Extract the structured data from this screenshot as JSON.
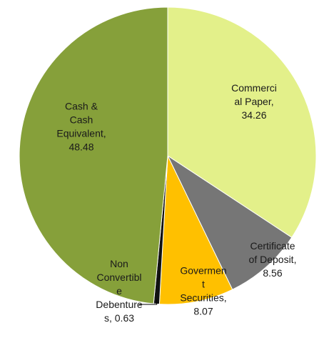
{
  "chart_data": {
    "type": "pie",
    "start_angle_deg": 0,
    "direction": "clockwise",
    "slices": [
      {
        "name": "Commercial Paper",
        "value": 34.26,
        "color": "#e3f08a",
        "label_lines": [
          "Commerci",
          "al Paper,",
          "34.26"
        ]
      },
      {
        "name": "Certificate of Deposit",
        "value": 8.56,
        "color": "#767676",
        "label_lines": [
          "Certificate",
          "of Deposit,",
          "8.56"
        ]
      },
      {
        "name": "Goverment Securities",
        "value": 8.07,
        "color": "#ffc000",
        "label_lines": [
          "Govermen",
          "t",
          "Securities,",
          "8.07"
        ]
      },
      {
        "name": "Non Convertible Debentures",
        "value": 0.63,
        "color": "#111111",
        "label_lines": [
          "Non",
          "Convertibl",
          "e",
          "Debenture",
          "s, 0.63"
        ]
      },
      {
        "name": "Cash & Cash Equivalent",
        "value": 48.48,
        "color": "#86a03a",
        "label_lines": [
          "Cash &",
          "Cash",
          "Equivalent,",
          "48.48"
        ]
      }
    ]
  }
}
